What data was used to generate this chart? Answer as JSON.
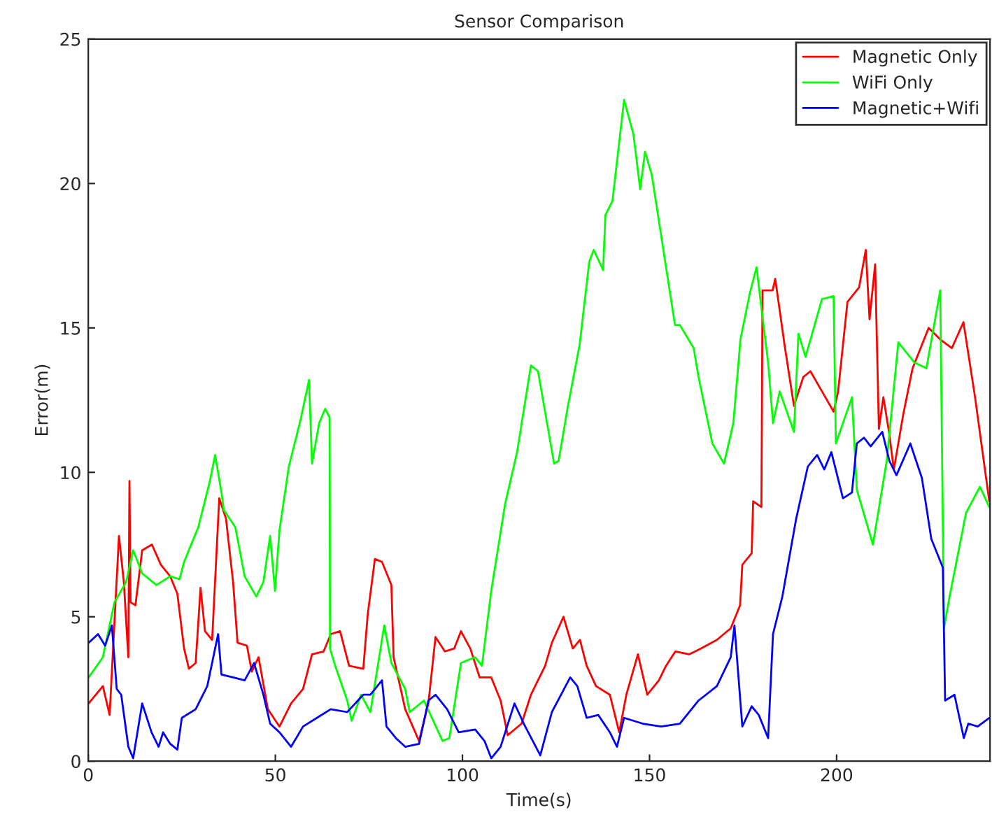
{
  "chart_data": {
    "type": "line",
    "title": "Sensor Comparison",
    "xlabel": "Time(s)",
    "ylabel": "Error(m)",
    "xlim": [
      0,
      241
    ],
    "ylim": [
      0,
      25
    ],
    "xticks": [
      0,
      50,
      100,
      150,
      200
    ],
    "yticks": [
      0,
      5,
      10,
      15,
      20,
      25
    ],
    "grid": false,
    "legend": "top right",
    "series": [
      {
        "name": "Magnetic Only",
        "color": "#ff0000",
        "x": [
          0.1,
          3.9,
          5.7,
          8.2,
          9.5,
          10.7,
          11,
          11.3,
          12.6,
          14.4,
          17,
          19.4,
          21.9,
          23.8,
          25.6,
          26.9,
          28.7,
          30,
          31.2,
          33.1,
          35,
          36.8,
          38.7,
          39.9,
          42.4,
          43.7,
          45.5,
          48,
          51.1,
          54.2,
          57.4,
          59.8,
          62.9,
          64.8,
          67.3,
          69.7,
          73.5,
          74.7,
          76.6,
          78.5,
          81,
          81.6,
          84.7,
          88.4,
          90.9,
          92.8,
          95.3,
          97.8,
          99.6,
          102.1,
          104.6,
          107.7,
          110.2,
          112.1,
          115.8,
          118.3,
          122.1,
          123.9,
          127,
          129.5,
          131.4,
          133.2,
          135.7,
          139.4,
          141.9,
          143.8,
          146.9,
          149.4,
          152.5,
          154.4,
          156.9,
          160.6,
          163.7,
          168,
          171.7,
          174.2,
          174.8,
          177.3,
          177.7,
          179.9,
          180.2,
          182.9,
          183.6,
          186.1,
          188.6,
          191.1,
          193,
          196.1,
          199.2,
          200.4,
          202.9,
          206,
          207.8,
          208.8,
          210.3,
          211.3,
          212.5,
          214,
          215.3,
          217.8,
          220.3,
          224.6,
          227.7,
          230.8,
          233.9,
          237,
          240.8
        ],
        "values": [
          2.0,
          2.6,
          1.6,
          7.8,
          6.2,
          3.6,
          9.7,
          5.5,
          5.4,
          7.3,
          7.5,
          6.8,
          6.4,
          5.8,
          3.9,
          3.2,
          3.4,
          6.0,
          4.5,
          4.2,
          9.1,
          8.4,
          6.2,
          4.1,
          4.0,
          3.1,
          3.6,
          1.8,
          1.2,
          2.0,
          2.5,
          3.7,
          3.8,
          4.4,
          4.5,
          3.3,
          3.2,
          5.1,
          7.0,
          6.9,
          6.1,
          3.6,
          1.8,
          0.7,
          2.0,
          4.3,
          3.8,
          3.9,
          4.5,
          3.9,
          2.9,
          2.9,
          2.1,
          0.9,
          1.3,
          2.3,
          3.3,
          4.1,
          5.0,
          3.9,
          4.2,
          3.3,
          2.6,
          2.3,
          1.0,
          2.3,
          3.7,
          2.3,
          2.8,
          3.3,
          3.8,
          3.7,
          3.9,
          4.2,
          4.6,
          5.4,
          6.8,
          7.2,
          9.0,
          8.8,
          16.3,
          16.3,
          16.7,
          14.4,
          12.3,
          13.3,
          13.5,
          12.8,
          12.1,
          12.8,
          15.9,
          16.4,
          17.7,
          15.3,
          17.2,
          11.5,
          12.6,
          11.4,
          10.1,
          12.0,
          13.6,
          15.0,
          14.6,
          14.3,
          15.2,
          12.6,
          9.0
        ]
      },
      {
        "name": "WiFi Only",
        "color": "#00ff00",
        "x": [
          0.1,
          3.9,
          7,
          10.1,
          12,
          14.4,
          18.2,
          21.9,
          24.4,
          25.6,
          29.4,
          32.5,
          33.9,
          35.6,
          36.2,
          39.3,
          41.8,
          44.9,
          46.8,
          48.6,
          49.9,
          51.1,
          53.6,
          56.7,
          59,
          59.8,
          61.7,
          63.3,
          64.5,
          64.6,
          66,
          69.2,
          70.4,
          72.9,
          75.4,
          79.1,
          81,
          84.7,
          85.9,
          89.7,
          94.7,
          96.5,
          99.6,
          103.4,
          105.2,
          107.7,
          111.4,
          114.6,
          118.3,
          120.2,
          124.5,
          125.7,
          128.2,
          131.3,
          133.9,
          135.1,
          137.6,
          138.2,
          140.1,
          143.2,
          145.7,
          147.5,
          148.8,
          150.6,
          153.7,
          156.8,
          158.1,
          161.8,
          163.1,
          166.8,
          169.9,
          172.4,
          174.3,
          176.8,
          178.6,
          179.9,
          181.7,
          183,
          184.8,
          188.6,
          189.8,
          191.7,
          196.1,
          199.2,
          199.8,
          204.1,
          205.4,
          209.7,
          213.4,
          216.5,
          220.8,
          224,
          227.7,
          228.7,
          230.2,
          234.6,
          238.3,
          240.8
        ],
        "values": [
          2.9,
          3.6,
          5.5,
          6.2,
          7.3,
          6.5,
          6.1,
          6.4,
          6.3,
          6.9,
          8.1,
          9.7,
          10.6,
          9.3,
          8.7,
          8.1,
          6.4,
          5.7,
          6.2,
          7.8,
          5.9,
          8.0,
          10.2,
          11.8,
          13.2,
          10.3,
          11.7,
          12.2,
          11.9,
          3.9,
          3.3,
          2.1,
          1.4,
          2.3,
          1.7,
          4.7,
          3.4,
          2.5,
          1.7,
          2.1,
          0.7,
          0.8,
          3.4,
          3.6,
          3.3,
          5.9,
          8.9,
          10.7,
          13.7,
          13.5,
          10.3,
          10.4,
          12.3,
          14.4,
          17.3,
          17.7,
          17.0,
          18.9,
          19.4,
          22.9,
          21.7,
          19.8,
          21.1,
          20.3,
          17.7,
          15.1,
          15.1,
          14.3,
          13.3,
          11.0,
          10.3,
          11.7,
          14.6,
          16.2,
          17.1,
          15.7,
          13.8,
          11.7,
          12.8,
          11.4,
          14.8,
          14.0,
          16.0,
          16.1,
          11.0,
          12.6,
          9.4,
          7.5,
          10.4,
          14.5,
          13.8,
          13.6,
          16.3,
          4.6,
          5.7,
          8.6,
          9.5,
          8.8
        ]
      },
      {
        "name": "Magnetic+Wifi",
        "color": "#0000ff",
        "x": [
          0.1,
          2.6,
          4.5,
          6.3,
          7.6,
          8.8,
          10.7,
          12,
          14.4,
          16.9,
          18.8,
          20,
          21.9,
          23.8,
          25,
          28.7,
          31.8,
          34.7,
          35.6,
          38.7,
          41.8,
          44.3,
          46.8,
          48.6,
          51.1,
          54.2,
          57.4,
          61.1,
          64.8,
          69.2,
          73.5,
          75.4,
          78.5,
          79.7,
          82.2,
          84.7,
          88.4,
          90.9,
          92.8,
          95.9,
          99,
          103.4,
          105.9,
          107.7,
          110.2,
          113.9,
          116.4,
          120.8,
          123.9,
          128.8,
          130.7,
          133.2,
          136.3,
          139.4,
          141.3,
          143.2,
          148.2,
          153.1,
          158.1,
          163.1,
          168,
          171.7,
          172.7,
          174.8,
          177.3,
          179.2,
          181.7,
          183,
          185.5,
          189.2,
          192.3,
          194.8,
          196.7,
          198.6,
          201.7,
          204.1,
          205.4,
          207.3,
          209.1,
          212.2,
          214.1,
          216,
          219.7,
          222.8,
          225.3,
          228.4,
          229,
          231.5,
          234,
          235.2,
          237.7,
          240.8
        ],
        "values": [
          4.1,
          4.4,
          4.0,
          4.7,
          2.5,
          2.3,
          0.5,
          0.1,
          2.0,
          1.0,
          0.5,
          1.0,
          0.6,
          0.4,
          1.5,
          1.8,
          2.6,
          4.4,
          3.0,
          2.9,
          2.8,
          3.4,
          2.3,
          1.3,
          1.0,
          0.5,
          1.2,
          1.5,
          1.8,
          1.7,
          2.3,
          2.3,
          2.8,
          1.2,
          0.8,
          0.5,
          0.6,
          2.1,
          2.3,
          1.8,
          1.0,
          1.1,
          0.7,
          0.1,
          0.5,
          2.0,
          1.3,
          0.2,
          1.7,
          2.9,
          2.6,
          1.5,
          1.6,
          1.0,
          0.5,
          1.5,
          1.3,
          1.2,
          1.3,
          2.1,
          2.6,
          3.6,
          4.7,
          1.2,
          1.9,
          1.6,
          0.8,
          4.4,
          5.7,
          8.4,
          10.2,
          10.6,
          10.1,
          10.7,
          9.1,
          9.3,
          11.0,
          11.2,
          10.9,
          11.4,
          10.4,
          9.9,
          11.0,
          9.8,
          7.7,
          6.7,
          2.1,
          2.3,
          0.8,
          1.3,
          1.2,
          1.5
        ]
      }
    ]
  }
}
